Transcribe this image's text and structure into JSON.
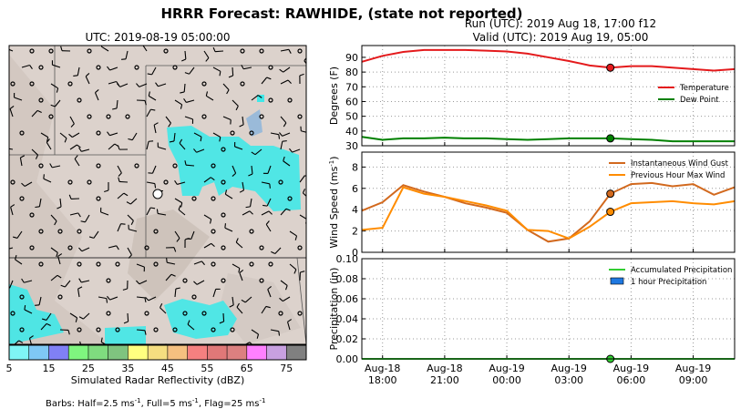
{
  "title": "HRRR Forecast: RAWHIDE, (state not reported)",
  "run_label": "Run (UTC): 2019 Aug 18, 17:00 f12",
  "valid_label": "Valid (UTC): 2019 Aug 19, 05:00",
  "map": {
    "title": "UTC: 2019-08-19 05:00:00",
    "colorbar": {
      "label": "Simulated Radar Reflectivity (dBZ)",
      "bounds": [
        5,
        10,
        15,
        20,
        25,
        30,
        35,
        40,
        45,
        50,
        55,
        60,
        65,
        70,
        75,
        80
      ],
      "colors": [
        "#7ff5f5",
        "#7fc8f5",
        "#8080f5",
        "#7ff57f",
        "#7fdc7f",
        "#7fc47f",
        "#ffff80",
        "#f5de80",
        "#f5c080",
        "#f58080",
        "#e07878",
        "#dc8080",
        "#ff80ff",
        "#c8a0e0",
        "#808080"
      ],
      "ticks": [
        5,
        15,
        25,
        35,
        45,
        55,
        65,
        75
      ]
    },
    "barbs_note": [
      "Barbs: Half=2.5 ms",
      "-1",
      ", Full=5 ms",
      "-1",
      ", Flag=25 ms",
      "-1"
    ]
  },
  "chart_data": [
    {
      "type": "line",
      "ylabel": [
        "Degrees (F)"
      ],
      "ylim": [
        30,
        98
      ],
      "yticks": [
        30,
        40,
        50,
        60,
        70,
        80,
        90
      ],
      "grid": true,
      "legend": "center right",
      "marker_index": 12,
      "series": [
        {
          "name": "Temperature",
          "color": "#e41a1c",
          "values": [
            87,
            91,
            93.7,
            95,
            95,
            95,
            94.5,
            94,
            92.5,
            90,
            87.5,
            84.5,
            83,
            84,
            84,
            83,
            82,
            81,
            82
          ]
        },
        {
          "name": "Dew Point",
          "color": "#008000",
          "values": [
            36,
            34,
            35,
            35,
            35.5,
            35,
            35,
            34.5,
            34,
            34.5,
            35,
            35,
            35,
            34.5,
            34,
            33,
            33,
            33,
            33
          ]
        }
      ]
    },
    {
      "type": "line",
      "ylabel": [
        "Wind Speed (ms",
        "-1",
        ")"
      ],
      "ylim": [
        0,
        9.4
      ],
      "yticks": [
        0,
        2,
        4,
        6,
        8
      ],
      "grid": true,
      "legend": "upper right",
      "marker_index": 12,
      "series": [
        {
          "name": "Instantaneous Wind Gust",
          "color": "#d2691e",
          "values": [
            3.9,
            4.7,
            6.3,
            5.7,
            5.2,
            4.6,
            4.2,
            3.7,
            2.1,
            1.0,
            1.3,
            2.9,
            5.5,
            6.4,
            6.5,
            6.2,
            6.4,
            5.4,
            6.1
          ]
        },
        {
          "name": "Previous Hour Max Wind",
          "color": "#ff8c00",
          "values": [
            2.1,
            2.3,
            6.1,
            5.5,
            5.2,
            4.8,
            4.4,
            3.9,
            2.1,
            2.0,
            1.3,
            2.4,
            3.8,
            4.6,
            4.7,
            4.8,
            4.6,
            4.5,
            4.8
          ]
        }
      ]
    },
    {
      "type": "line",
      "ylabel": [
        "Precipitation (in)"
      ],
      "ylim": [
        0,
        0.1
      ],
      "yticks": [
        {
          "value": 0,
          "label": "0.00"
        },
        {
          "value": 0.02,
          "label": "0.02"
        },
        {
          "value": 0.04,
          "label": "0.04"
        },
        {
          "value": 0.06,
          "label": "0.06"
        },
        {
          "value": 0.08,
          "label": "0.08"
        },
        {
          "value": 0.1,
          "label": "0.10"
        }
      ],
      "grid": true,
      "legend": "upper right",
      "marker_index": 12,
      "categories": [
        null,
        {
          "date": "Aug-18",
          "time": "18:00"
        },
        null,
        null,
        {
          "date": "Aug-18",
          "time": "21:00"
        },
        null,
        null,
        {
          "date": "Aug-19",
          "time": "00:00"
        },
        null,
        null,
        {
          "date": "Aug-19",
          "time": "03:00"
        },
        null,
        null,
        {
          "date": "Aug-19",
          "time": "06:00"
        },
        null,
        null,
        {
          "date": "Aug-19",
          "time": "09:00"
        },
        null,
        null
      ],
      "series": [
        {
          "name": "Accumulated Precipitation",
          "color": "#32cd32",
          "values": [
            0,
            0,
            0,
            0,
            0,
            0,
            0,
            0,
            0,
            0,
            0,
            0,
            0,
            0,
            0,
            0,
            0,
            0,
            0
          ]
        },
        {
          "name": "1 hour Precipitation",
          "color": "#1e78e0",
          "kind": "bar",
          "values": [
            0,
            0,
            0,
            0,
            0,
            0,
            0,
            0,
            0,
            0,
            0,
            0,
            0,
            0,
            0,
            0,
            0,
            0,
            0
          ]
        }
      ]
    }
  ]
}
